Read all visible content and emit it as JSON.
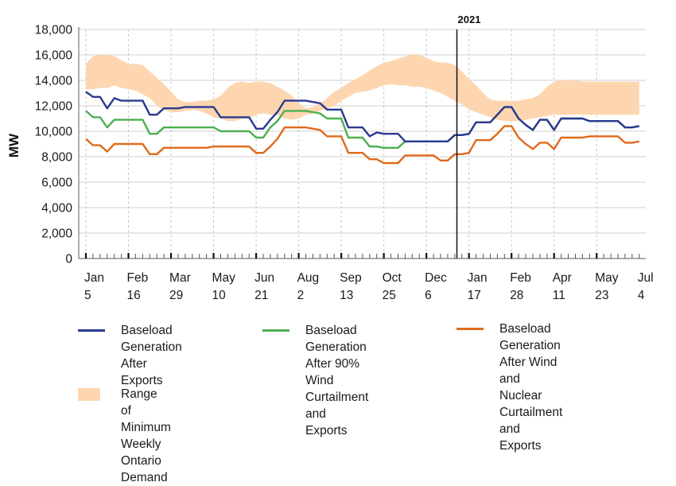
{
  "chart_data": {
    "type": "line",
    "title": "",
    "xlabel": "",
    "ylabel": "MW",
    "ylim": [
      0,
      18000
    ],
    "yticks": [
      0,
      2000,
      4000,
      6000,
      8000,
      10000,
      12000,
      14000,
      16000,
      18000
    ],
    "ytick_labels": [
      "0",
      "2,000",
      "4,000",
      "6,000",
      "8,000",
      "10,000",
      "12,000",
      "14,000",
      "16,000",
      "18,000"
    ],
    "x_unit": "weeks since Jan 5, 2020",
    "xlim": [
      0,
      78
    ],
    "xticks": [
      {
        "week": 0,
        "month": "Jan",
        "day": "5"
      },
      {
        "week": 6,
        "month": "Feb",
        "day": "16"
      },
      {
        "week": 12,
        "month": "Mar",
        "day": "29"
      },
      {
        "week": 18,
        "month": "May",
        "day": "10"
      },
      {
        "week": 24,
        "month": "Jun",
        "day": "21"
      },
      {
        "week": 30,
        "month": "Aug",
        "day": "2"
      },
      {
        "week": 36,
        "month": "Sep",
        "day": "13"
      },
      {
        "week": 42,
        "month": "Oct",
        "day": "25"
      },
      {
        "week": 48,
        "month": "Dec",
        "day": "6"
      },
      {
        "week": 54,
        "month": "Jan",
        "day": "17"
      },
      {
        "week": 60,
        "month": "Feb",
        "day": "28"
      },
      {
        "week": 66,
        "month": "Apr",
        "day": "11"
      },
      {
        "week": 72,
        "month": "May",
        "day": "23"
      },
      {
        "week": 78,
        "month": "Jul",
        "day": "4"
      }
    ],
    "minor_tick_interval_weeks": 1,
    "grid": {
      "horizontal": true,
      "vertical_dashed_at_major_ticks": true
    },
    "annotation": {
      "label": "2021",
      "week": 52.3
    },
    "x": [
      0,
      1,
      2,
      3,
      4,
      5,
      6,
      7,
      8,
      9,
      10,
      11,
      12,
      13,
      14,
      15,
      16,
      17,
      18,
      19,
      20,
      21,
      22,
      23,
      24,
      25,
      26,
      27,
      28,
      29,
      30,
      31,
      32,
      33,
      34,
      35,
      36,
      37,
      38,
      39,
      40,
      41,
      42,
      43,
      44,
      45,
      46,
      47,
      48,
      49,
      50,
      51,
      52,
      53,
      54,
      55,
      56,
      57,
      58,
      59,
      60,
      61,
      62,
      63,
      64,
      65,
      66,
      67,
      68,
      69,
      70,
      71,
      72,
      73,
      74,
      75,
      76,
      77,
      78
    ],
    "band": {
      "name": "Range of Minimum Weekly Ontario Demand",
      "color": "#fdd6b0",
      "upper": [
        15300,
        15900,
        16000,
        16000,
        15900,
        15600,
        15300,
        15300,
        15200,
        14700,
        14200,
        13700,
        13100,
        12500,
        12300,
        12300,
        12400,
        12400,
        12500,
        12800,
        13400,
        13800,
        13900,
        13800,
        13900,
        13900,
        13800,
        13500,
        13200,
        12800,
        12200,
        11800,
        11900,
        12200,
        12600,
        13100,
        13400,
        13800,
        14100,
        14400,
        14800,
        15100,
        15400,
        15500,
        15700,
        15900,
        16000,
        16000,
        15800,
        15500,
        15400,
        15400,
        15200,
        14700,
        14100,
        13600,
        13000,
        12500,
        12400,
        12400,
        12400,
        12400,
        12500,
        12600,
        12900,
        13500,
        13900,
        14000,
        14000,
        14000,
        13900,
        13900,
        13900,
        13900,
        13900,
        13900,
        13900,
        13900,
        13900
      ],
      "lower": [
        13300,
        13300,
        13400,
        13400,
        13600,
        13400,
        13300,
        13200,
        12900,
        12600,
        12000,
        11700,
        11500,
        11500,
        11600,
        11700,
        11600,
        11400,
        11100,
        11000,
        10800,
        10800,
        11000,
        11000,
        11300,
        11400,
        11300,
        11300,
        11000,
        10900,
        11000,
        11300,
        11400,
        11600,
        11800,
        12000,
        12400,
        12700,
        13000,
        13100,
        13200,
        13400,
        13600,
        13700,
        13600,
        13600,
        13500,
        13500,
        13400,
        13200,
        13000,
        12700,
        12400,
        12100,
        11700,
        11500,
        11300,
        11100,
        10900,
        10800,
        10800,
        10800,
        10900,
        11000,
        11100,
        11200,
        11300,
        11300,
        11300,
        11300,
        11300,
        11300,
        11300,
        11300,
        11300,
        11300,
        11300,
        11300,
        11300
      ]
    },
    "series": [
      {
        "name": "Baseload Generation After Exports",
        "color": "#2b3990",
        "values": [
          13100,
          12700,
          12700,
          11800,
          12600,
          12400,
          12400,
          12400,
          12400,
          11300,
          11300,
          11800,
          11800,
          11800,
          11900,
          11900,
          11900,
          11900,
          11900,
          11100,
          11100,
          11100,
          11100,
          11100,
          10200,
          10200,
          10900,
          11500,
          12400,
          12400,
          12400,
          12400,
          12300,
          12200,
          11700,
          11700,
          11700,
          10300,
          10300,
          10300,
          9600,
          9900,
          9800,
          9800,
          9800,
          9200,
          9200,
          9200,
          9200,
          9200,
          9200,
          9200,
          9700,
          9700,
          9800,
          10700,
          10700,
          10700,
          11300,
          11900,
          11900,
          11000,
          10500,
          10100,
          10900,
          10900,
          10100,
          11000,
          11000,
          11000,
          11000,
          10800,
          10800,
          10800,
          10800,
          10800,
          10300,
          10300,
          10400
        ]
      },
      {
        "name": "Baseload Generation After 90% Wind Curtailment and Exports",
        "color": "#4caf50",
        "values": [
          11600,
          11100,
          11100,
          10300,
          10900,
          10900,
          10900,
          10900,
          10900,
          9800,
          9800,
          10300,
          10300,
          10300,
          10300,
          10300,
          10300,
          10300,
          10300,
          10000,
          10000,
          10000,
          10000,
          10000,
          9500,
          9500,
          10300,
          10800,
          11600,
          11600,
          11600,
          11600,
          11500,
          11400,
          11000,
          11000,
          11000,
          9500,
          9500,
          9500,
          8800,
          8800,
          8700,
          8700,
          8700,
          9200,
          9200,
          9200,
          9200,
          9200,
          9200,
          9200,
          9700,
          9700,
          9800,
          10700,
          10700,
          10700,
          11300,
          11900,
          11900,
          11000,
          10500,
          10100,
          10900,
          10900,
          10100,
          11000,
          11000,
          11000,
          11000,
          10800,
          10800,
          10800,
          10800,
          10800,
          10300,
          10300,
          10400
        ]
      },
      {
        "name": "Baseload Generation After Wind and Nuclear Curtailment and Exports",
        "color": "#e06a1b",
        "values": [
          9400,
          8900,
          8900,
          8400,
          9000,
          9000,
          9000,
          9000,
          9000,
          8200,
          8200,
          8700,
          8700,
          8700,
          8700,
          8700,
          8700,
          8700,
          8800,
          8800,
          8800,
          8800,
          8800,
          8800,
          8300,
          8300,
          8800,
          9400,
          10300,
          10300,
          10300,
          10300,
          10200,
          10100,
          9600,
          9600,
          9600,
          8300,
          8300,
          8300,
          7800,
          7800,
          7500,
          7500,
          7500,
          8100,
          8100,
          8100,
          8100,
          8100,
          7700,
          7700,
          8200,
          8200,
          8300,
          9300,
          9300,
          9300,
          9800,
          10400,
          10400,
          9500,
          9000,
          8600,
          9100,
          9100,
          8600,
          9500,
          9500,
          9500,
          9500,
          9600,
          9600,
          9600,
          9600,
          9600,
          9100,
          9100,
          9200
        ]
      }
    ],
    "legend": [
      {
        "kind": "line",
        "label": "Baseload Generation\nAfter Exports",
        "color": "#2b3990"
      },
      {
        "kind": "line",
        "label": "Baseload Generation\nAfter 90% Wind\nCurtailment and Exports",
        "color": "#4caf50"
      },
      {
        "kind": "line",
        "label": "Baseload Generation\nAfter Wind and Nuclear\nCurtailment and Exports",
        "color": "#e06a1b"
      },
      {
        "kind": "band",
        "label": "Range of Minimum\nWeekly Ontario Demand",
        "color": "#fdd6b0"
      }
    ],
    "legend_position": "bottom"
  }
}
